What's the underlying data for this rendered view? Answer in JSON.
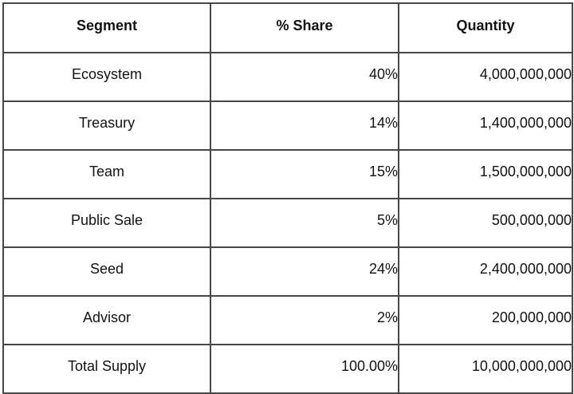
{
  "chart_data": {
    "type": "table",
    "columns": [
      "Segment",
      "% Share",
      "Quantity"
    ],
    "rows": [
      [
        "Ecosystem",
        "40%",
        "4,000,000,000"
      ],
      [
        "Treasury",
        "14%",
        "1,400,000,000"
      ],
      [
        "Team",
        "15%",
        "1,500,000,000"
      ],
      [
        "Public Sale",
        "5%",
        "500,000,000"
      ],
      [
        "Seed",
        "24%",
        "2,400,000,000"
      ],
      [
        "Advisor",
        "2%",
        "200,000,000"
      ],
      [
        "Total Supply",
        "100.00%",
        "10,000,000,000"
      ]
    ],
    "share_percent_values": [
      40,
      14,
      15,
      5,
      24,
      2,
      100.0
    ],
    "quantity_values": [
      4000000000,
      1400000000,
      1500000000,
      500000000,
      2400000000,
      200000000,
      10000000000
    ]
  },
  "colors": {
    "border": "#474747",
    "text": "#121212",
    "background": "#ffffff"
  }
}
